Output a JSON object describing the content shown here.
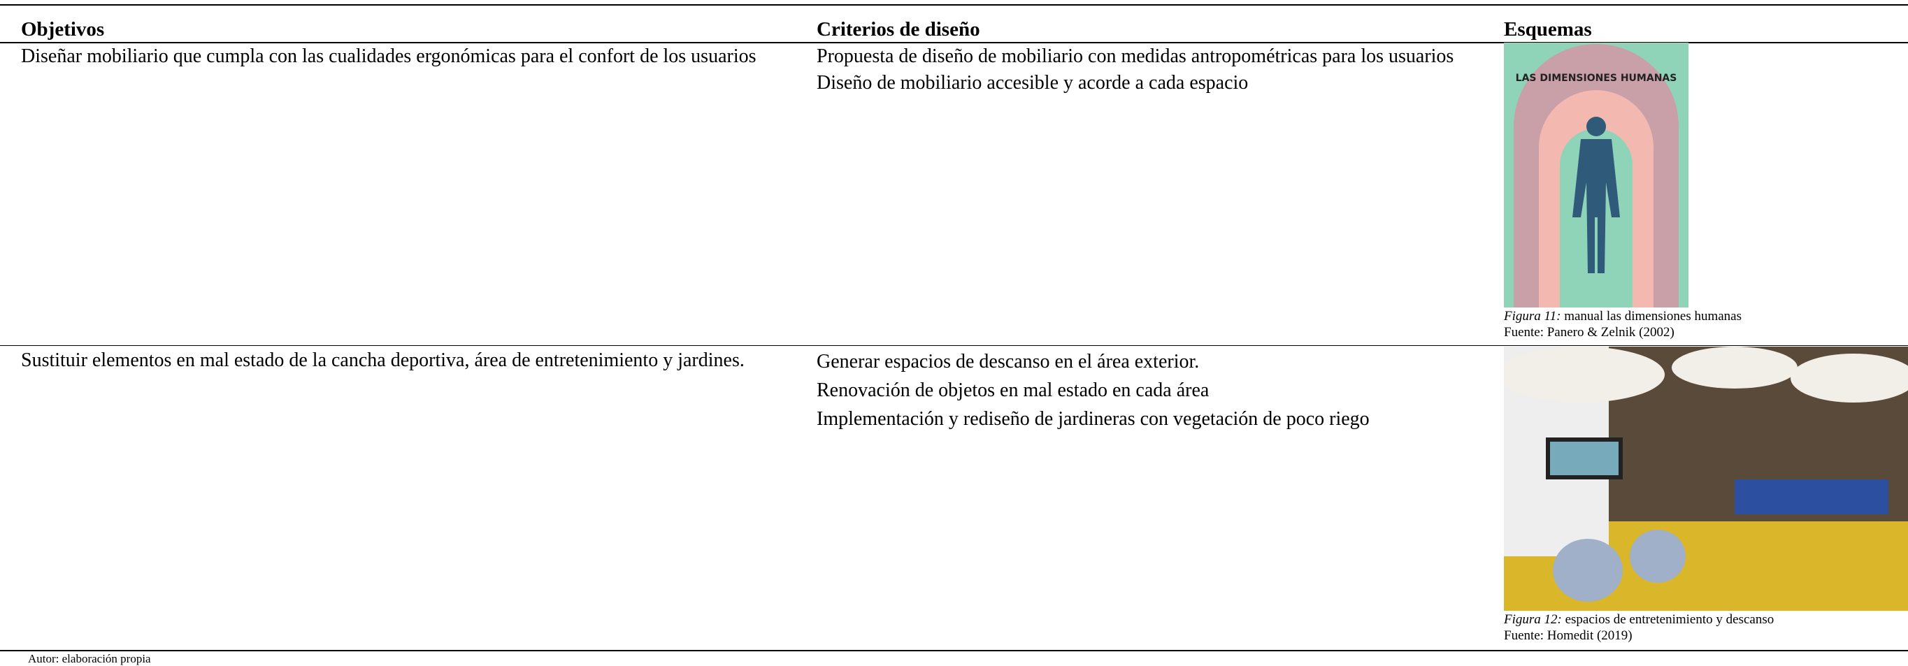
{
  "table": {
    "headers": [
      "Objetivos",
      "Criterios de diseño",
      "Esquemas"
    ],
    "rows": [
      {
        "objective": "Diseñar mobiliario que cumpla con las cualidades ergonómicas para el confort de los usuarios",
        "criteria": [
          "Propuesta de diseño de mobiliario con medidas antropométricas para los usuarios",
          "Diseño de mobiliario accesible y acorde a cada espacio"
        ],
        "figure": {
          "label": "Figura 11:",
          "caption": "manual las dimensiones  humanas",
          "source": "Fuente: Panero & Zelnik (2002)"
        }
      },
      {
        "objective": "Sustituir elementos en mal estado de la cancha deportiva, área de entretenimiento y jardines.",
        "criteria": [
          "Generar espacios de descanso en el área exterior.",
          "Renovación de objetos en mal estado en cada área",
          "Implementación y rediseño de jardineras con vegetación de poco riego"
        ],
        "figure": {
          "label": "Figura 12:",
          "caption": "espacios de entretenimiento y descanso",
          "source": "Fuente: Homedit (2019)"
        }
      }
    ]
  },
  "footer": "Autor: elaboración propia"
}
